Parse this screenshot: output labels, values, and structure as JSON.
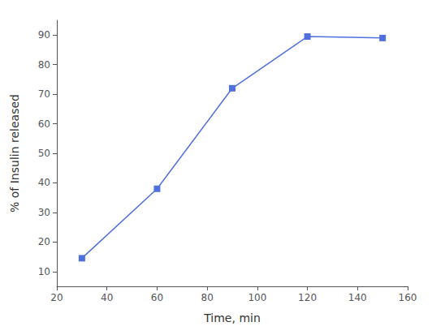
{
  "chart_data": {
    "type": "line",
    "x": [
      30,
      60,
      90,
      120,
      150
    ],
    "values": [
      14.5,
      38.0,
      72.0,
      89.5,
      89.0
    ],
    "xlabel": "Time, min",
    "ylabel": "% of Insulin released",
    "xlim": [
      20,
      160
    ],
    "ylim": [
      5,
      95
    ],
    "xticks": [
      20,
      40,
      60,
      80,
      100,
      120,
      140,
      160
    ],
    "yticks": [
      10,
      20,
      30,
      40,
      50,
      60,
      70,
      80,
      90
    ],
    "marker": "square",
    "grid": false
  }
}
